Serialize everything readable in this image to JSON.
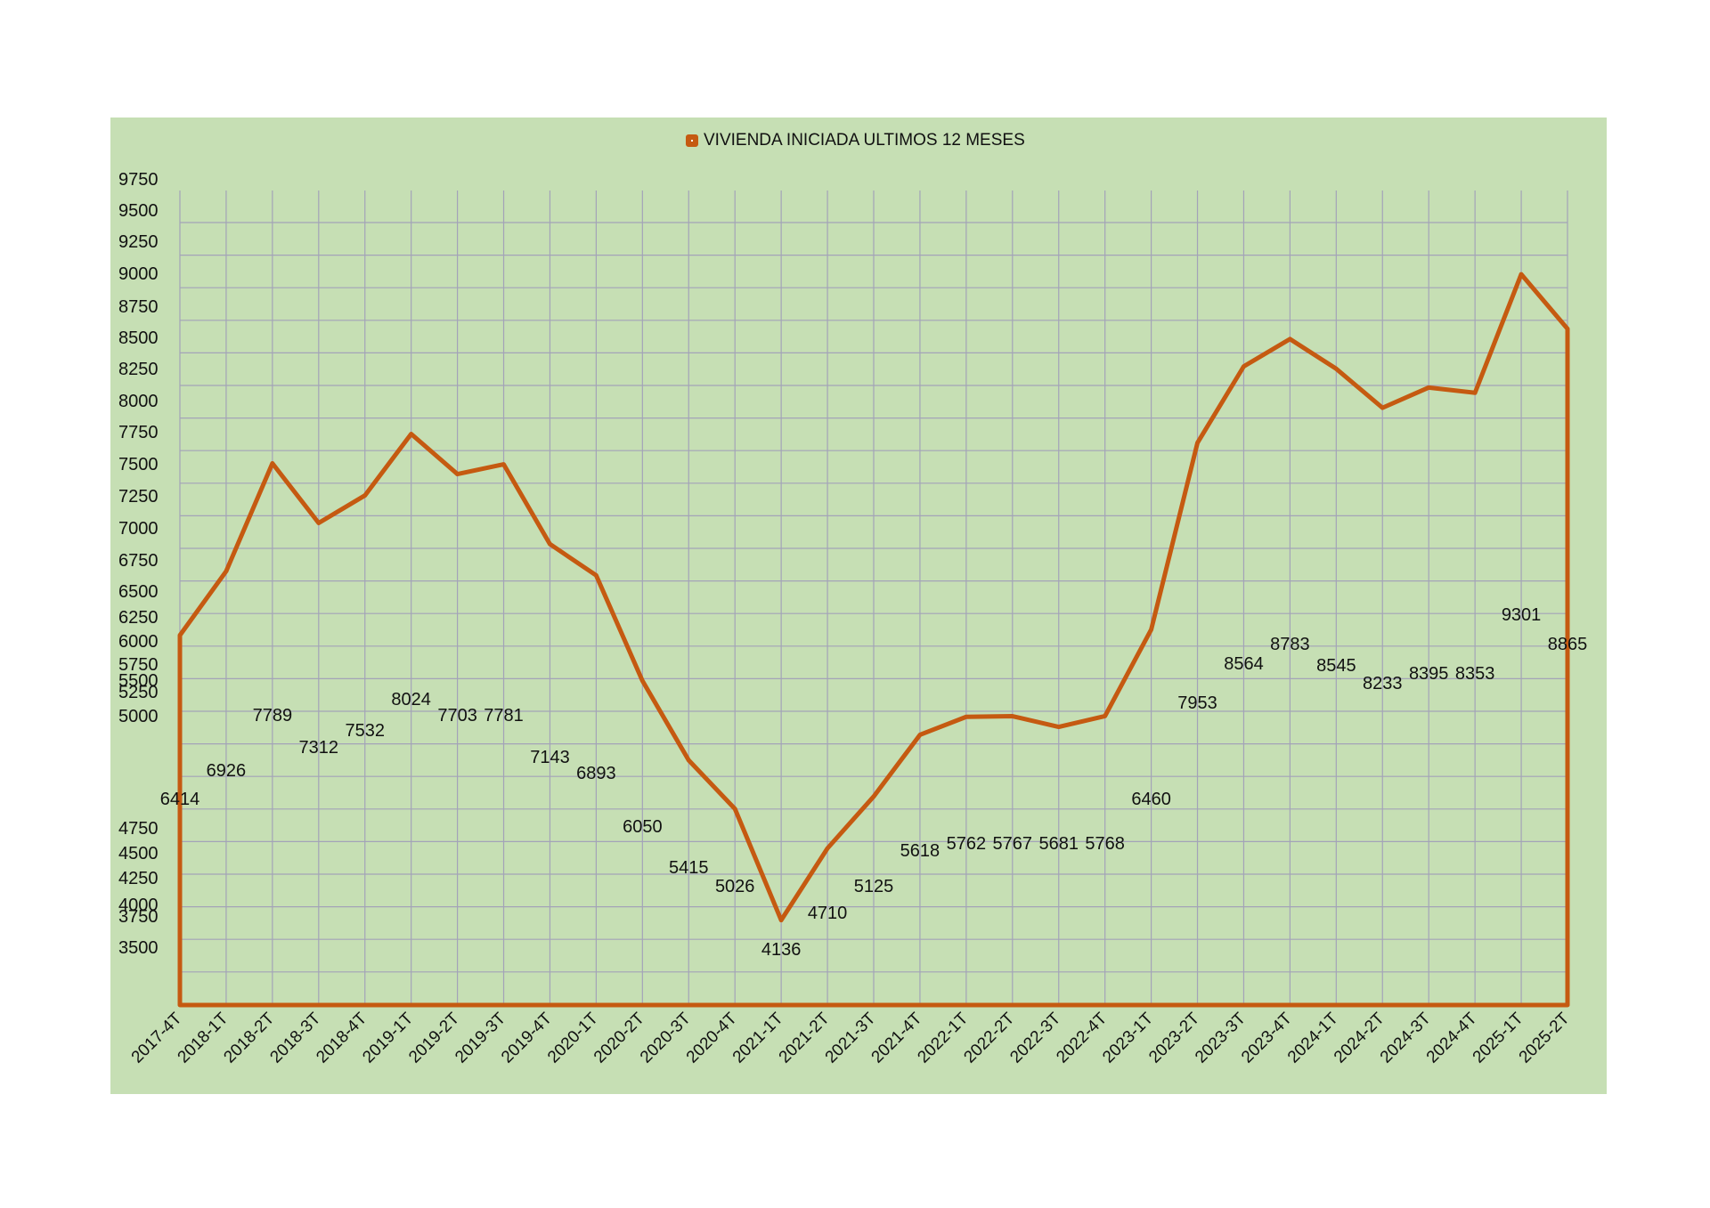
{
  "chart_data": {
    "type": "line",
    "title": "",
    "xlabel": "",
    "ylabel": "",
    "legend": {
      "position": "top-center",
      "entries": [
        "VIVIENDA INICIADA ULTIMOS 12 MESES"
      ]
    },
    "series": [
      {
        "name": "VIVIENDA INICIADA ULTIMOS 12 MESES",
        "color": "#c55a11",
        "values": [
          6414,
          6926,
          7789,
          7312,
          7532,
          8024,
          7703,
          7781,
          7143,
          6893,
          6050,
          5415,
          5026,
          4136,
          4710,
          5125,
          5618,
          5762,
          5767,
          5681,
          5768,
          6460,
          7953,
          8564,
          8783,
          8545,
          8233,
          8395,
          8353,
          9301,
          8865
        ]
      }
    ],
    "categories": [
      "2017-4T",
      "2018-1T",
      "2018-2T",
      "2018-3T",
      "2018-4T",
      "2019-1T",
      "2019-2T",
      "2019-3T",
      "2019-4T",
      "2020-1T",
      "2020-2T",
      "2020-3T",
      "2020-4T",
      "2021-1T",
      "2021-2T",
      "2021-3T",
      "2021-4T",
      "2022-1T",
      "2022-2T",
      "2022-3T",
      "2022-4T",
      "2023-1T",
      "2023-2T",
      "2023-3T",
      "2023-4T",
      "2024-1T",
      "2024-2T",
      "2024-3T",
      "2024-4T",
      "2025-1T",
      "2025-2T"
    ],
    "y_tick_labels": [
      "9750",
      "9500",
      "9250",
      "9000",
      "8750",
      "8500",
      "8250",
      "8000",
      "7750",
      "7500",
      "7250",
      "7000",
      "6750",
      "6500",
      "6250",
      "6000",
      "5750",
      "5500",
      "5250",
      "5000",
      "4750",
      "4500",
      "4250",
      "4000",
      "3750",
      "3500"
    ],
    "ylim": [
      3500,
      9750
    ],
    "grid": true,
    "colors": {
      "panel": "#c6dfb4",
      "grid": "#a3a3b8",
      "line": "#c55a11",
      "text": "#111111"
    }
  }
}
